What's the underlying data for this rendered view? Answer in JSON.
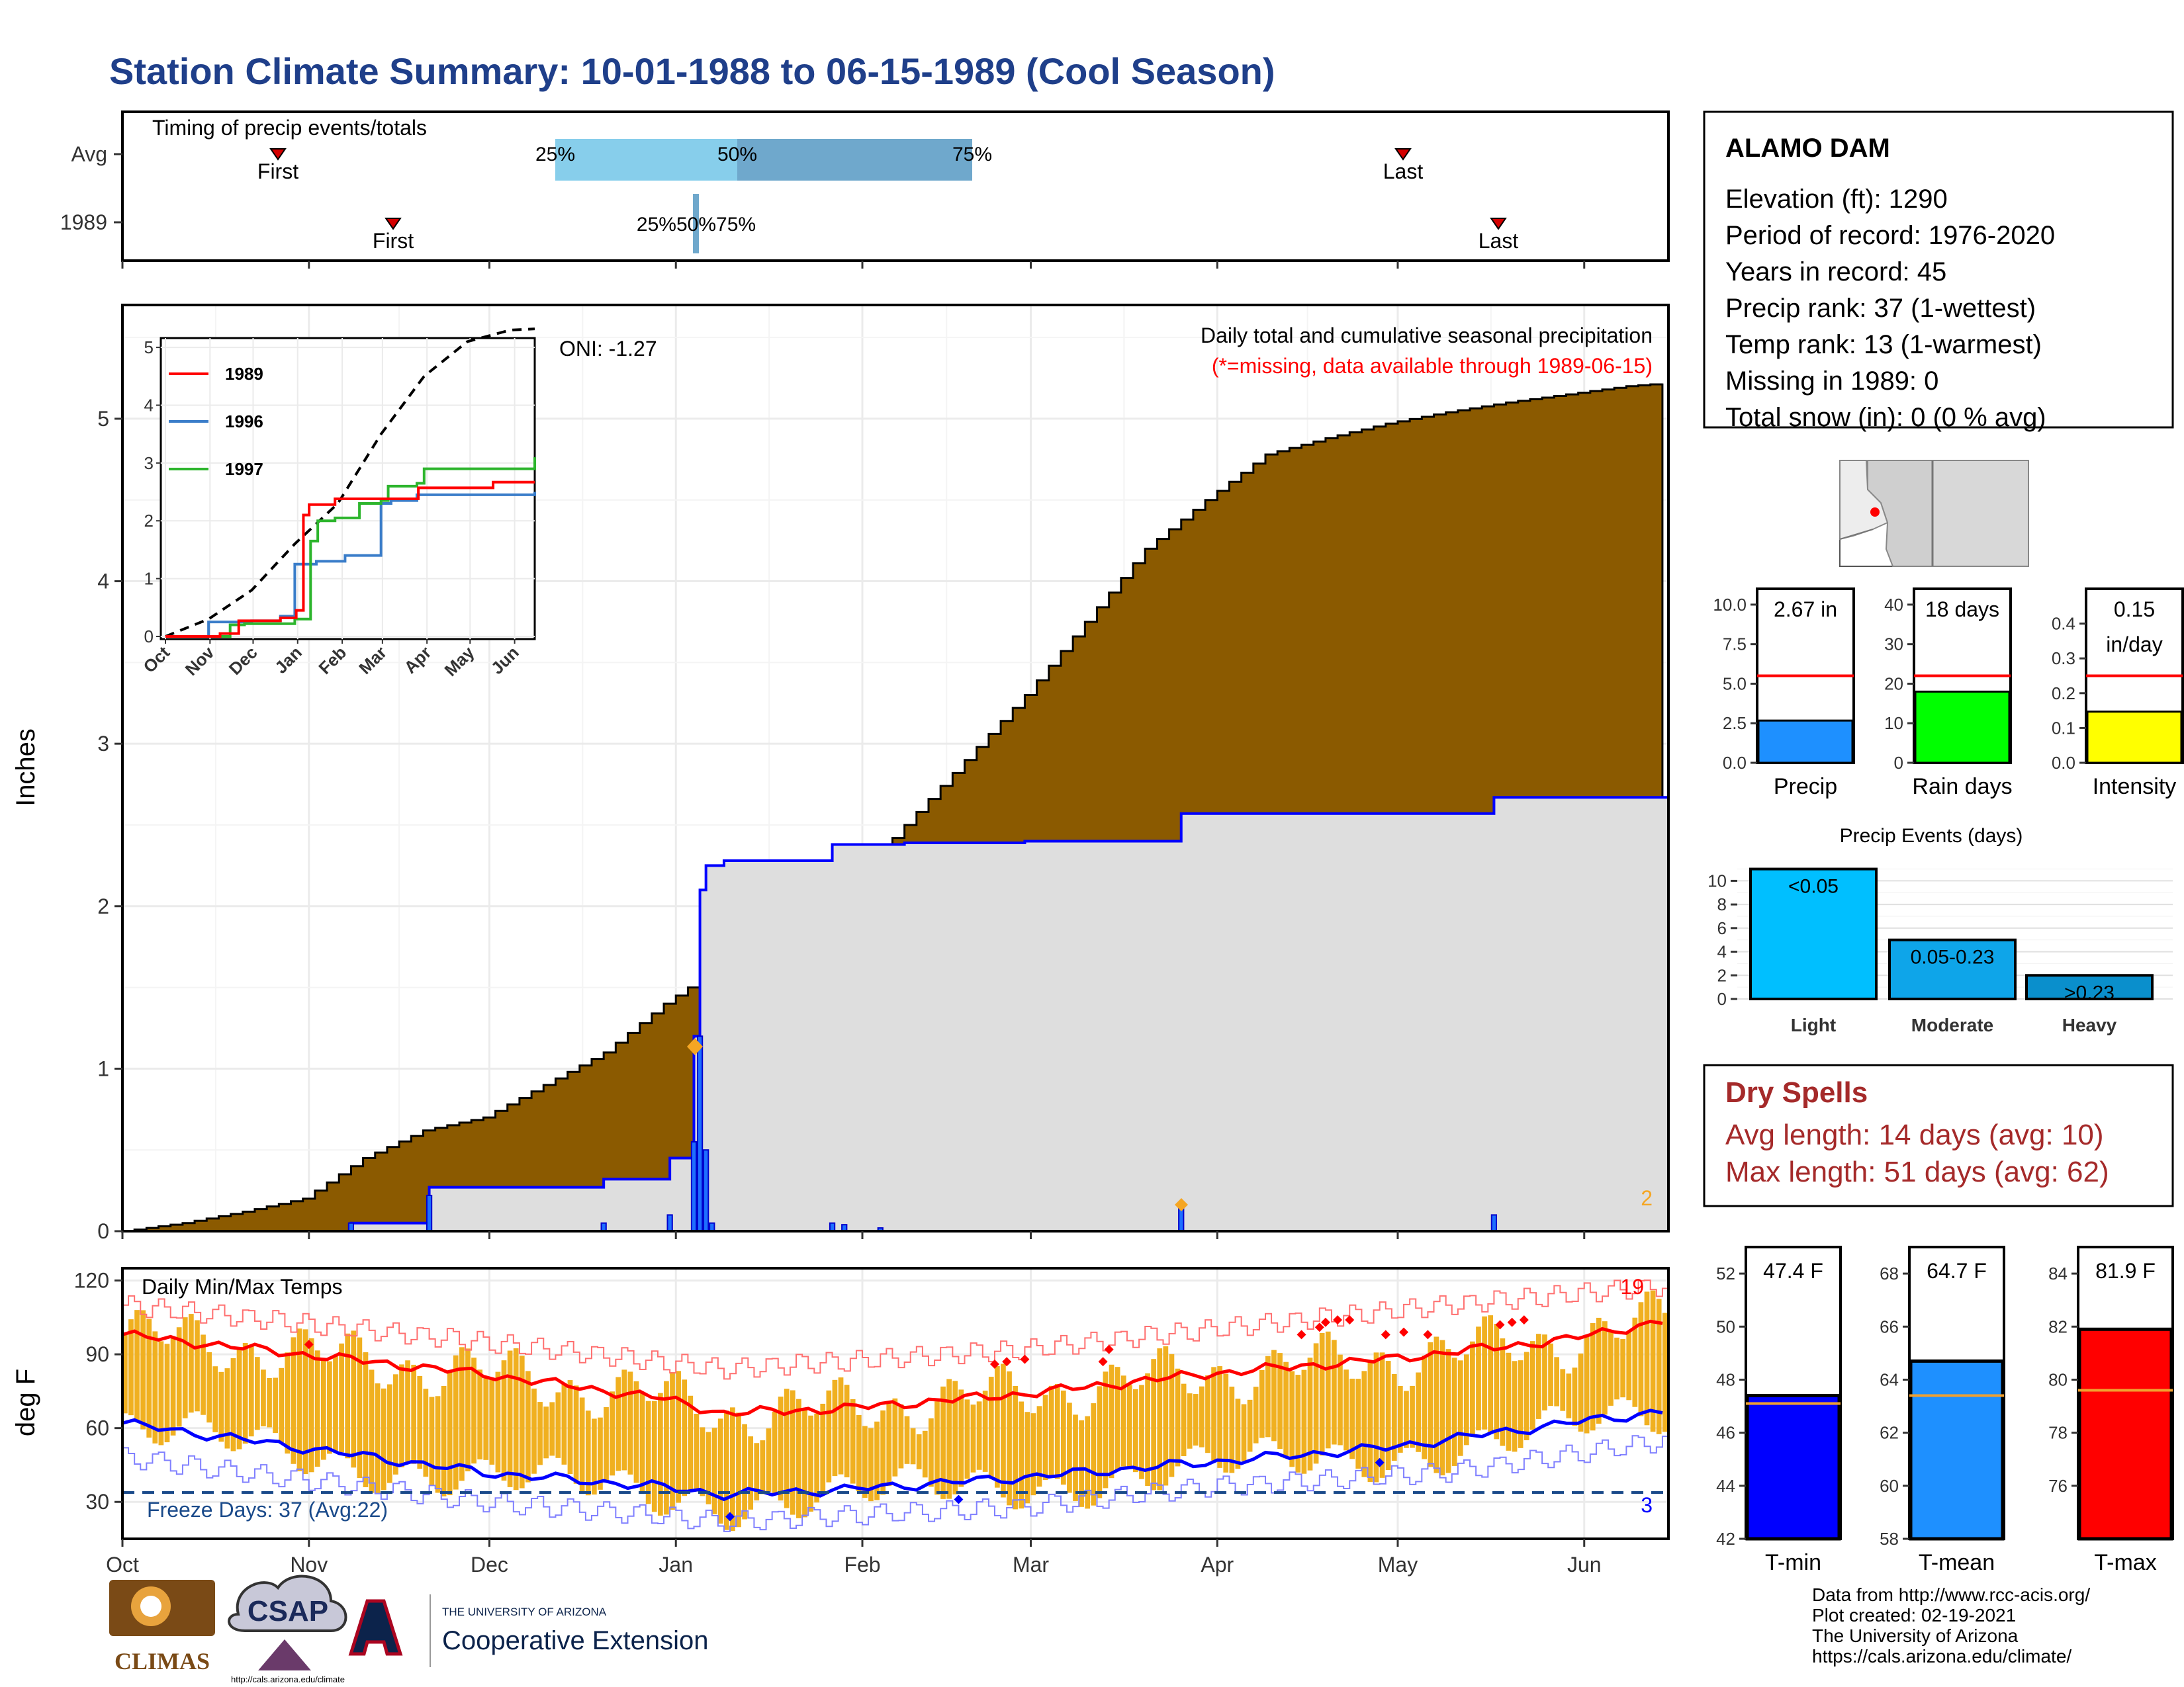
{
  "title": "Station Climate Summary: 10-01-1988 to 06-15-1989 (Cool Season)",
  "colors": {
    "title": "#1f3f8a",
    "cum_fill": "#8B5A00",
    "avg_fill": "#DEDEDE",
    "outline": "#0000FF",
    "temp_bar": "#F0B020",
    "tmax_avg": "#FF0000",
    "tmin_avg": "#0000FF",
    "dry_spell_text": "#A52A2A",
    "missing_text": "#FF0000"
  },
  "timing": {
    "title": "Timing of precip events/totals",
    "rows": [
      "Avg",
      "1989"
    ],
    "first_label": "First",
    "last_label": "Last",
    "pct_labels": [
      "25%",
      "50%",
      "75%"
    ],
    "pct_labels_1989": "25%50%75%",
    "avg_first": "10-26",
    "avg_last": "05-01",
    "y1989_first": "11-15",
    "y1989_last": "05-17",
    "avg_quartiles": [
      "12-17",
      "01-18",
      "02-20"
    ],
    "y1989_quartiles": [
      "01-02",
      "01-03",
      "01-03"
    ]
  },
  "precip": {
    "annotation": "Daily total and cumulative seasonal precipitation",
    "missing_note": "(*=missing, data available through 1989-06-15)",
    "oni": "ONI: -1.27",
    "ylabel": "Inches",
    "yticks": [
      "0",
      "1",
      "2",
      "3",
      "4",
      "5"
    ],
    "corner_count": "2"
  },
  "inset": {
    "yticks": [
      "0",
      "1",
      "2",
      "3",
      "4",
      "5"
    ],
    "xticks": [
      "Oct",
      "Nov",
      "Dec",
      "Jan",
      "Feb",
      "Mar",
      "Apr",
      "May",
      "Jun"
    ],
    "legend": [
      "1989",
      "1996",
      "1997"
    ]
  },
  "temps": {
    "title": "Daily Min/Max Temps",
    "ylabel": "deg F",
    "yticks": [
      "30",
      "60",
      "90",
      "120"
    ],
    "freeze": "Freeze Days: 37 (Avg:22)",
    "hot_count": "19",
    "cold_count": "3",
    "xticks": [
      "Oct",
      "Nov",
      "Dec",
      "Jan",
      "Feb",
      "Mar",
      "Apr",
      "May",
      "Jun"
    ]
  },
  "station": {
    "name": "ALAMO DAM",
    "lines": [
      "Elevation (ft): 1290",
      "Period of record: 1976-2020",
      "Years in record: 45",
      "Precip rank: 37 (1-wettest)",
      "Temp rank: 13 (1-warmest)",
      "Missing in 1989: 0",
      "Total snow (in): 0 (0 % avg)"
    ]
  },
  "mini_bars": [
    {
      "label": "Precip",
      "value_text": "2.67 in",
      "value": 2.67,
      "avg": 5.5,
      "max": 11,
      "color": "#1E90FF",
      "yticks": [
        "0.0",
        "2.5",
        "5.0",
        "7.5",
        "10.0"
      ]
    },
    {
      "label": "Rain days",
      "value_text": "18 days",
      "value": 18,
      "avg": 22,
      "max": 44,
      "color": "#00FF00",
      "yticks": [
        "0",
        "10",
        "20",
        "30",
        "40"
      ]
    },
    {
      "label": "Intensity",
      "value_text": "0.15",
      "value_text2": "in/day",
      "value": 0.147,
      "avg": 0.25,
      "max": 0.5,
      "color": "#FFFF00",
      "yticks": [
        "0.0",
        "0.1",
        "0.2",
        "0.3",
        "0.4"
      ]
    }
  ],
  "events": {
    "title": "Precip Events (days)",
    "yticks": [
      "0",
      "2",
      "4",
      "6",
      "8",
      "10"
    ],
    "categories": [
      "Light",
      "Moderate",
      "Heavy"
    ],
    "bar_labels": [
      "<0.05",
      "0.05-0.23",
      ">0.23"
    ],
    "values": [
      11,
      5,
      2
    ],
    "colors": [
      "#00BFFF",
      "#0EA5E9",
      "#0A8FCC"
    ]
  },
  "dry": {
    "title": "Dry Spells",
    "avg": "Avg length: 14 days (avg: 10)",
    "max": "Max length: 51 days (avg: 62)"
  },
  "temp_bars": [
    {
      "label": "T-min",
      "value_text": "47.4 F",
      "value": 47.4,
      "avg": 47.1,
      "min": 42,
      "max": 53,
      "color": "#0000FF",
      "yticks": [
        "42",
        "44",
        "46",
        "48",
        "50",
        "52"
      ]
    },
    {
      "label": "T-mean",
      "value_text": "64.7 F",
      "value": 64.7,
      "avg": 63.4,
      "min": 58,
      "max": 69,
      "color": "#1E90FF",
      "yticks": [
        "58",
        "60",
        "62",
        "64",
        "66",
        "68"
      ]
    },
    {
      "label": "T-max",
      "value_text": "81.9 F",
      "value": 81.9,
      "avg": 79.6,
      "min": 74,
      "max": 85,
      "color": "#FF0000",
      "yticks": [
        "76",
        "78",
        "80",
        "82",
        "84"
      ]
    }
  ],
  "footer": [
    "Data from http://www.rcc-acis.org/",
    "Plot created: 02-19-2021",
    "The University of Arizona",
    "https://cals.arizona.edu/climate/"
  ],
  "logos": {
    "climas": "CLIMAS",
    "csap": "CSAP",
    "csap_url": "http://cals.arizona.edu/climate",
    "ua_small": "THE UNIVERSITY OF ARIZONA",
    "coop": "Cooperative Extension"
  },
  "chart_data": [
    {
      "type": "area",
      "title": "Daily total and cumulative seasonal precipitation",
      "ylabel": "Inches",
      "ylim": [
        0,
        5.7
      ],
      "x_months": [
        "Oct",
        "Nov",
        "Dec",
        "Jan",
        "Feb",
        "Mar",
        "Apr",
        "May",
        "Jun"
      ],
      "series": [
        {
          "name": "avg",
          "points": [
            [
              0,
              0
            ],
            [
              10,
              0.05
            ],
            [
              20,
              0.12
            ],
            [
              30,
              0.2
            ],
            [
              40,
              0.45
            ],
            [
              50,
              0.62
            ],
            [
              60,
              0.7
            ],
            [
              70,
              0.9
            ],
            [
              80,
              1.1
            ],
            [
              90,
              1.4
            ],
            [
              100,
              1.65
            ],
            [
              110,
              1.95
            ],
            [
              120,
              2.1
            ],
            [
              130,
              2.5
            ],
            [
              140,
              2.9
            ],
            [
              150,
              3.3
            ],
            [
              160,
              3.75
            ],
            [
              170,
              4.2
            ],
            [
              180,
              4.5
            ],
            [
              190,
              4.78
            ],
            [
              200,
              4.88
            ],
            [
              210,
              4.97
            ],
            [
              220,
              5.04
            ],
            [
              230,
              5.1
            ],
            [
              240,
              5.15
            ],
            [
              250,
              5.2
            ],
            [
              257,
              5.22
            ]
          ]
        },
        {
          "name": "1989",
          "points": [
            [
              0,
              0
            ],
            [
              38,
              0
            ],
            [
              38,
              0.05
            ],
            [
              51,
              0.05
            ],
            [
              51,
              0.27
            ],
            [
              80,
              0.27
            ],
            [
              80,
              0.32
            ],
            [
              91,
              0.45
            ],
            [
              94,
              0.45
            ],
            [
              95,
              1.2
            ],
            [
              96,
              2.1
            ],
            [
              97,
              2.25
            ],
            [
              100,
              2.28
            ],
            [
              118,
              2.28
            ],
            [
              118,
              2.38
            ],
            [
              130,
              2.39
            ],
            [
              150,
              2.4
            ],
            [
              175,
              2.4
            ],
            [
              176,
              2.57
            ],
            [
              228,
              2.57
            ],
            [
              228,
              2.67
            ],
            [
              257,
              2.67
            ]
          ]
        }
      ],
      "daily": [
        [
          38,
          0.05
        ],
        [
          51,
          0.22
        ],
        [
          80,
          0.05
        ],
        [
          91,
          0.1
        ],
        [
          95,
          0.55
        ],
        [
          96,
          1.2
        ],
        [
          97,
          0.5
        ],
        [
          98,
          0.05
        ],
        [
          118,
          0.05
        ],
        [
          120,
          0.04
        ],
        [
          126,
          0.02
        ],
        [
          176,
          0.17
        ],
        [
          228,
          0.1
        ]
      ],
      "notes": "ONI: -1.27"
    },
    {
      "type": "line",
      "title": "",
      "x": [
        "Oct",
        "Nov",
        "Dec",
        "Jan",
        "Feb",
        "Mar",
        "Apr",
        "May",
        "Jun"
      ],
      "ylim": [
        0,
        5.5
      ],
      "series": [
        {
          "name": "avg",
          "points": [
            [
              0,
              0
            ],
            [
              30,
              0.3
            ],
            [
              60,
              0.8
            ],
            [
              90,
              1.6
            ],
            [
              120,
              2.3
            ],
            [
              150,
              3.5
            ],
            [
              180,
              4.5
            ],
            [
              210,
              5.1
            ],
            [
              240,
              5.3
            ],
            [
              257,
              5.32
            ]
          ]
        },
        {
          "name": "1989",
          "points": [
            [
              0,
              0
            ],
            [
              38,
              0.05
            ],
            [
              51,
              0.27
            ],
            [
              80,
              0.32
            ],
            [
              91,
              0.45
            ],
            [
              96,
              2.1
            ],
            [
              100,
              2.28
            ],
            [
              118,
              2.38
            ],
            [
              176,
              2.57
            ],
            [
              228,
              2.67
            ],
            [
              257,
              2.67
            ]
          ]
        },
        {
          "name": "1996",
          "points": [
            [
              0,
              0
            ],
            [
              20,
              0
            ],
            [
              30,
              0.25
            ],
            [
              60,
              0.27
            ],
            [
              80,
              0.35
            ],
            [
              90,
              1.25
            ],
            [
              103,
              1.25
            ],
            [
              105,
              1.3
            ],
            [
              125,
              1.4
            ],
            [
              150,
              2.3
            ],
            [
              157,
              2.35
            ],
            [
              175,
              2.45
            ],
            [
              257,
              2.5
            ]
          ]
        },
        {
          "name": "1997",
          "points": [
            [
              0,
              0
            ],
            [
              40,
              0
            ],
            [
              45,
              0.2
            ],
            [
              55,
              0.22
            ],
            [
              90,
              0.3
            ],
            [
              100,
              0.3
            ],
            [
              101,
              1.65
            ],
            [
              106,
              2.0
            ],
            [
              118,
              2.05
            ],
            [
              135,
              2.3
            ],
            [
              150,
              2.35
            ],
            [
              155,
              2.6
            ],
            [
              175,
              2.65
            ],
            [
              180,
              2.9
            ],
            [
              250,
              2.9
            ],
            [
              257,
              3.1
            ]
          ]
        }
      ]
    },
    {
      "type": "bar",
      "title": "Daily Min/Max Temps",
      "ylabel": "deg F",
      "ylim": [
        15,
        125
      ],
      "series": [
        {
          "name": "avg max",
          "points": [
            [
              0,
              98
            ],
            [
              30,
              90
            ],
            [
              60,
              82
            ],
            [
              90,
              72
            ],
            [
              100,
              66
            ],
            [
              120,
              68
            ],
            [
              150,
              74
            ],
            [
              180,
              82
            ],
            [
              210,
              88
            ],
            [
              240,
              96
            ],
            [
              257,
              104
            ]
          ]
        },
        {
          "name": "avg min",
          "points": [
            [
              0,
              62
            ],
            [
              30,
              52
            ],
            [
              60,
              42
            ],
            [
              90,
              36
            ],
            [
              100,
              33
            ],
            [
              120,
              35
            ],
            [
              150,
              40
            ],
            [
              180,
              46
            ],
            [
              210,
              52
            ],
            [
              240,
              62
            ],
            [
              257,
              67
            ]
          ]
        },
        {
          "name": "record max",
          "points": [
            [
              0,
              110
            ],
            [
              60,
              95
            ],
            [
              100,
              84
            ],
            [
              150,
              92
            ],
            [
              180,
              100
            ],
            [
              220,
              110
            ],
            [
              257,
              118
            ]
          ]
        },
        {
          "name": "record min",
          "points": [
            [
              0,
              48
            ],
            [
              60,
              30
            ],
            [
              100,
              22
            ],
            [
              150,
              28
            ],
            [
              180,
              36
            ],
            [
              220,
              42
            ],
            [
              257,
              55
            ]
          ]
        }
      ],
      "freeze_line": 32,
      "notes": "Freeze Days: 37 (Avg:22)"
    }
  ]
}
